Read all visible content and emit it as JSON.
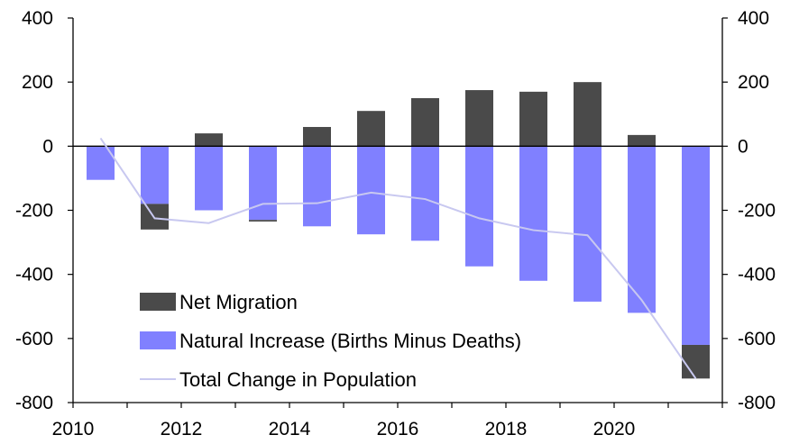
{
  "chart_data": {
    "type": "bar",
    "stacked": true,
    "x": [
      2010,
      2011,
      2012,
      2013,
      2014,
      2015,
      2016,
      2017,
      2018,
      2019,
      2020,
      2021
    ],
    "series": [
      {
        "name": "Net Migration",
        "type": "bar",
        "color": "#4a4a4a",
        "values": [
          0,
          -80,
          40,
          -5,
          60,
          110,
          150,
          175,
          170,
          200,
          35,
          -105
        ]
      },
      {
        "name": "Natural Increase (Births Minus Deaths)",
        "type": "bar",
        "color": "#8080ff",
        "values": [
          -105,
          -180,
          -200,
          -230,
          -250,
          -275,
          -295,
          -375,
          -420,
          -485,
          -520,
          -620
        ]
      },
      {
        "name": "Total Change in Population",
        "type": "line",
        "color": "#c8c8f0",
        "values": [
          25,
          -225,
          -240,
          -180,
          -178,
          -145,
          -165,
          -225,
          -262,
          -278,
          -480,
          -725
        ]
      }
    ],
    "ylim": [
      -800,
      400
    ],
    "yticks": [
      "400",
      "200",
      "0",
      "-200",
      "-400",
      "-600",
      "-800"
    ],
    "xtick_labels": [
      "2010",
      "2012",
      "2014",
      "2016",
      "2018",
      "2020"
    ],
    "dual_y_axis": true,
    "legend_placement": "bottom-left",
    "grid": false
  }
}
